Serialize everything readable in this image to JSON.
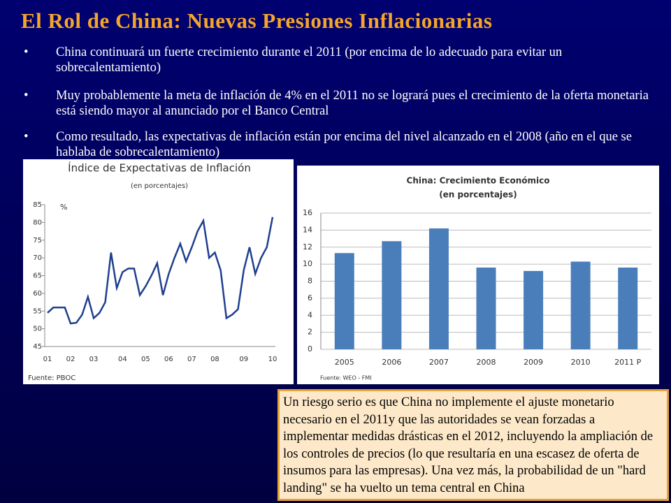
{
  "title": "El Rol de China: Nuevas Presiones Inflacionarias",
  "bullets": [
    "China continuará un fuerte crecimiento durante el 2011 (por encima de lo adecuado para evitar un sobrecalentamiento)",
    "Muy probablemente la meta de inflación de 4% en el 2011 no se logrará pues el crecimiento de la oferta monetaria está siendo mayor al anunciado por el Banco Central",
    "Como resultado, las expectativas de inflación están por encima del nivel alcanzado en el 2008 (año en el que se hablaba de sobrecalentamiento)"
  ],
  "note": "Un riesgo serio es que China no implemente el ajuste monetario necesario en el 2011y que las autoridades se vean forzadas a implementar medidas drásticas en el 2012, incluyendo la ampliación de los controles de precios (lo que resultaría en una escasez de oferta de insumos para las empresas). Una vez más, la probabilidad de un \"hard landing\" se ha vuelto un tema central en China",
  "chart_data": [
    {
      "type": "line",
      "title": "Índice de Expectativas de Inflación",
      "subtitle": "(en porcentajes)",
      "ylabel": "%",
      "source": "Fuente: PBOC",
      "categories": [
        "01",
        null,
        null,
        null,
        "02",
        null,
        null,
        null,
        "03",
        null,
        null,
        null,
        null,
        "04",
        null,
        null,
        null,
        "05",
        null,
        null,
        null,
        "06",
        null,
        null,
        null,
        "07",
        null,
        null,
        null,
        "08",
        null,
        null,
        null,
        null,
        "09",
        null,
        null,
        null,
        null,
        "10"
      ],
      "values": [
        54.5,
        56,
        56,
        56,
        51.5,
        51.7,
        54,
        59,
        53,
        54.5,
        57.5,
        71.5,
        61.5,
        66,
        67,
        67,
        59.5,
        62,
        65,
        68.5,
        59.5,
        65.5,
        70,
        74,
        69,
        73,
        77.5,
        80.5,
        70,
        71.5,
        66.5,
        53,
        54,
        55.5,
        66.5,
        73,
        65.5,
        70,
        73,
        81.5
      ],
      "color": "#1f3f8f",
      "ylim": [
        45,
        85
      ],
      "yticks": [
        45,
        50,
        55,
        60,
        65,
        70,
        75,
        80,
        85
      ],
      "grid": false
    },
    {
      "type": "bar",
      "title": "China: Crecimiento Económico",
      "subtitle": "(en porcentajes)",
      "source": "Fuente: WEO - FMI",
      "categories": [
        "2005",
        "2006",
        "2007",
        "2008",
        "2009",
        "2010",
        "2011 P"
      ],
      "values": [
        11.3,
        12.7,
        14.2,
        9.6,
        9.2,
        10.3,
        9.6
      ],
      "color": "#4a7ebb",
      "ylim": [
        0,
        16
      ],
      "yticks": [
        0,
        2,
        4,
        6,
        8,
        10,
        12,
        14,
        16
      ],
      "grid": true
    }
  ]
}
